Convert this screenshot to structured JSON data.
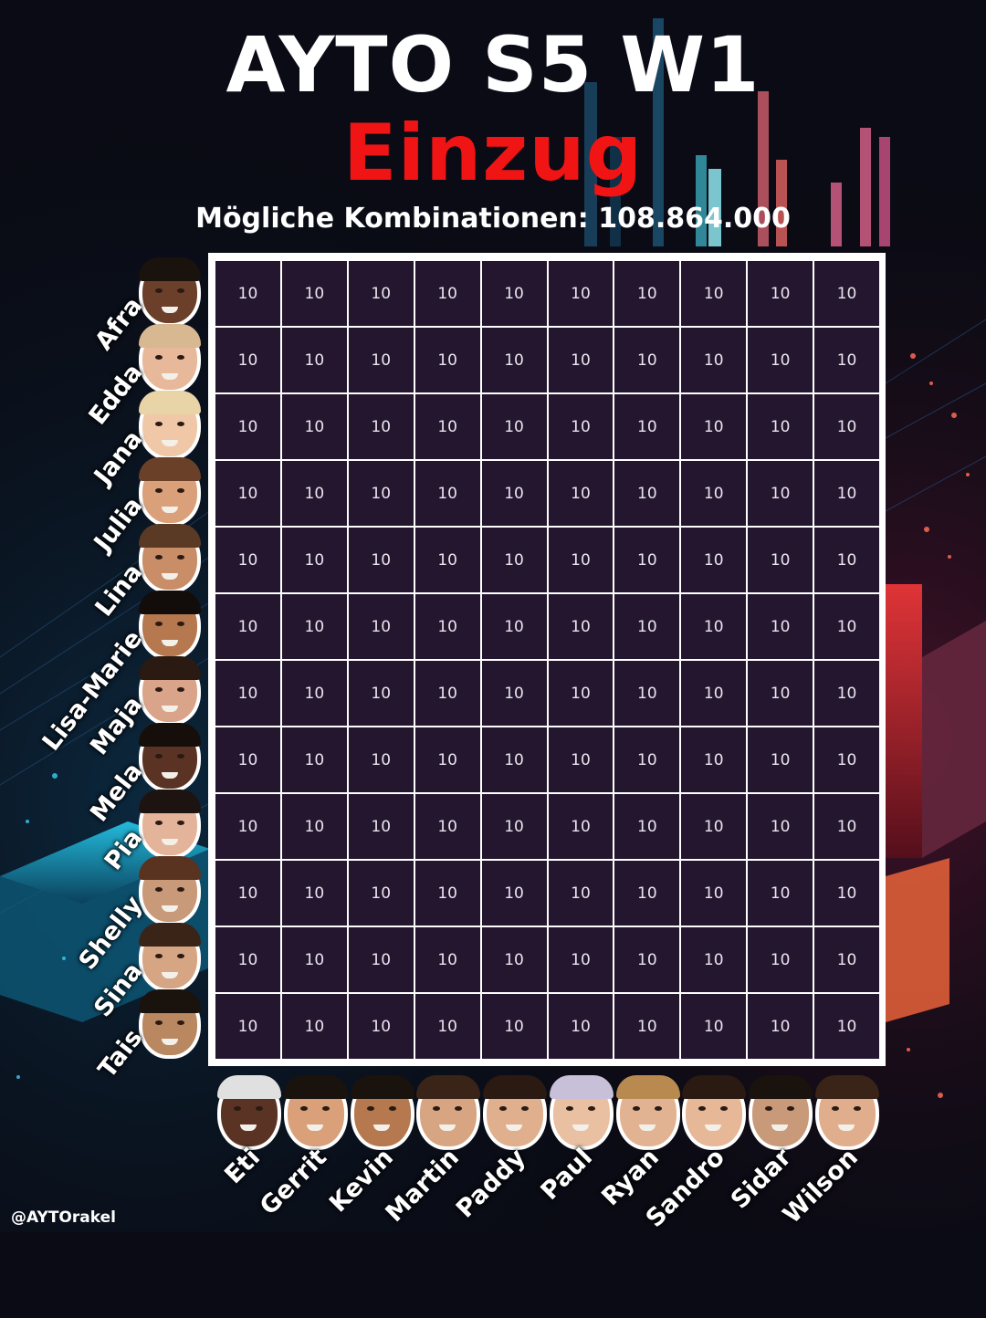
{
  "header": {
    "title": "AYTO S5  W1",
    "subtitle": "Einzug",
    "combinations_label": "Mögliche Kombinationen:",
    "combinations_value": "108.864.000"
  },
  "women": [
    "Afra",
    "Edda",
    "Jana",
    "Julia",
    "Lina",
    "Lisa-Marie",
    "Maja",
    "Mela",
    "Pia",
    "Shelly",
    "Sina",
    "Tais"
  ],
  "men": [
    "Eti",
    "Gerrit",
    "Kevin",
    "Martin",
    "Paddy",
    "Paul",
    "Ryan",
    "Sandro",
    "Sidar",
    "Wilson"
  ],
  "matrix": [
    [
      "10",
      "10",
      "10",
      "10",
      "10",
      "10",
      "10",
      "10",
      "10",
      "10"
    ],
    [
      "10",
      "10",
      "10",
      "10",
      "10",
      "10",
      "10",
      "10",
      "10",
      "10"
    ],
    [
      "10",
      "10",
      "10",
      "10",
      "10",
      "10",
      "10",
      "10",
      "10",
      "10"
    ],
    [
      "10",
      "10",
      "10",
      "10",
      "10",
      "10",
      "10",
      "10",
      "10",
      "10"
    ],
    [
      "10",
      "10",
      "10",
      "10",
      "10",
      "10",
      "10",
      "10",
      "10",
      "10"
    ],
    [
      "10",
      "10",
      "10",
      "10",
      "10",
      "10",
      "10",
      "10",
      "10",
      "10"
    ],
    [
      "10",
      "10",
      "10",
      "10",
      "10",
      "10",
      "10",
      "10",
      "10",
      "10"
    ],
    [
      "10",
      "10",
      "10",
      "10",
      "10",
      "10",
      "10",
      "10",
      "10",
      "10"
    ],
    [
      "10",
      "10",
      "10",
      "10",
      "10",
      "10",
      "10",
      "10",
      "10",
      "10"
    ],
    [
      "10",
      "10",
      "10",
      "10",
      "10",
      "10",
      "10",
      "10",
      "10",
      "10"
    ],
    [
      "10",
      "10",
      "10",
      "10",
      "10",
      "10",
      "10",
      "10",
      "10",
      "10"
    ],
    [
      "10",
      "10",
      "10",
      "10",
      "10",
      "10",
      "10",
      "10",
      "10",
      "10"
    ]
  ],
  "footer": {
    "handle": "@AYTOrakel"
  },
  "colors": {
    "title": "#ffffff",
    "subtitle": "#f01414",
    "cell_bg": "#24162f",
    "grid_border": "#ffffff",
    "background": "#0a0b14"
  }
}
